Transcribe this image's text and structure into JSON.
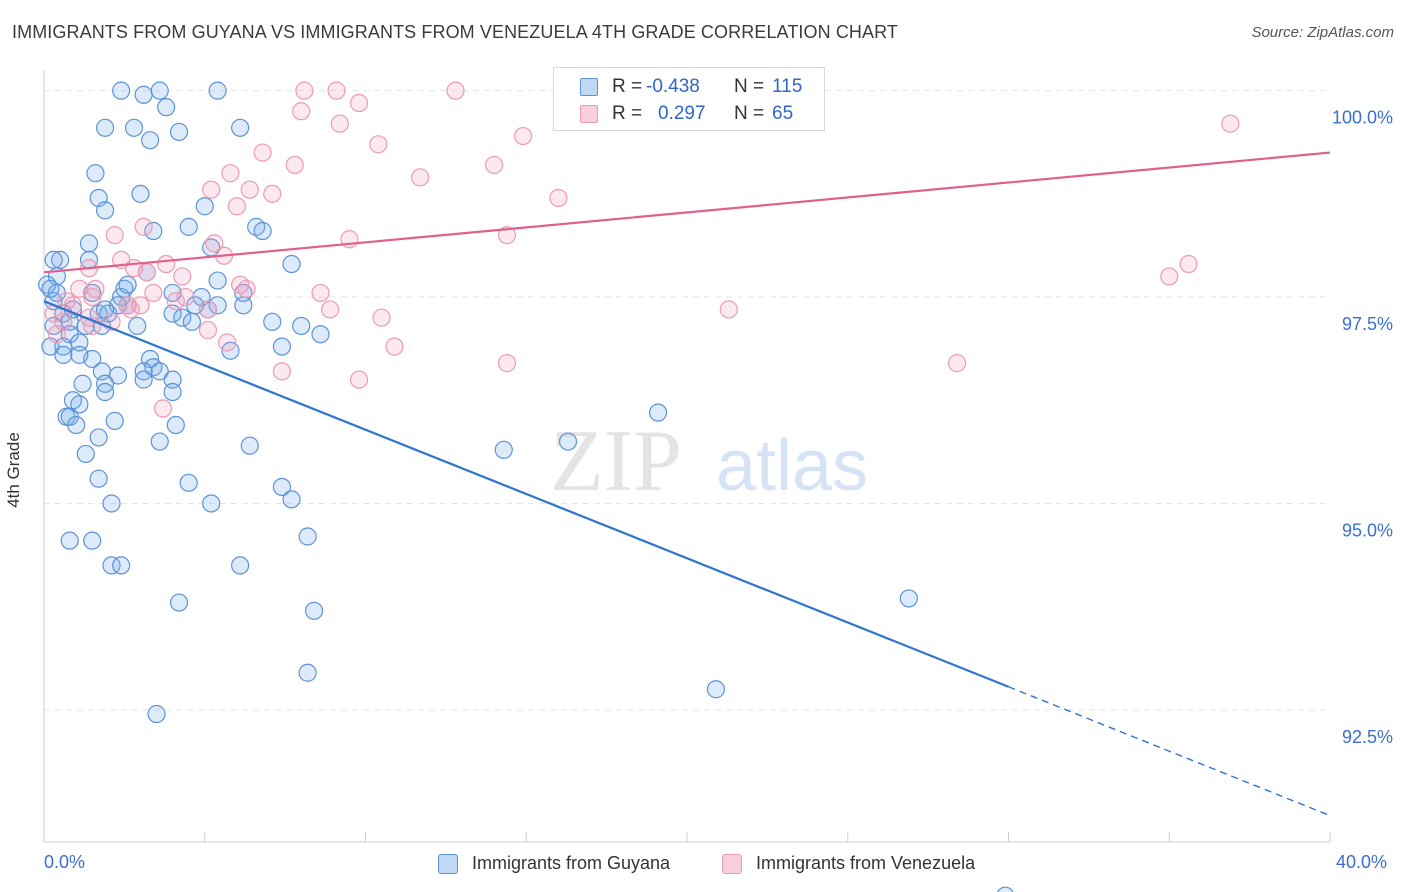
{
  "title": "IMMIGRANTS FROM GUYANA VS IMMIGRANTS FROM VENEZUELA 4TH GRADE CORRELATION CHART",
  "source": "Source: ZipAtlas.com",
  "watermark": {
    "part1": "ZIP",
    "part2": "atlas"
  },
  "legend": {
    "rows": [
      {
        "r_label": "R =",
        "r_value": "-0.438",
        "n_label": "N =",
        "n_value": "115"
      },
      {
        "r_label": "R =",
        "r_value": "0.297",
        "n_label": "N =",
        "n_value": "65"
      }
    ]
  },
  "colors": {
    "guyana_fill": "rgba(120,170,230,0.25)",
    "guyana_stroke": "#5b93d8",
    "guyana_line": "#2f74d0",
    "venezuela_fill": "rgba(240,150,180,0.22)",
    "venezuela_stroke": "#ec9ab5",
    "venezuela_line": "#e0608a",
    "tick_label": "#3b6fcf",
    "grid": "#e5e5e5"
  },
  "chart_data": {
    "type": "scatter",
    "title": "IMMIGRANTS FROM GUYANA VS IMMIGRANTS FROM VENEZUELA 4TH GRADE CORRELATION CHART",
    "xlabel": "",
    "ylabel": "4th Grade",
    "xlim": [
      0,
      40
    ],
    "ylim": [
      90.9,
      100.25
    ],
    "x_tick_labels": [
      "0.0%",
      "40.0%"
    ],
    "y_ticks": [
      92.5,
      95.0,
      97.5,
      100.0
    ],
    "y_tick_labels": [
      "92.5%",
      "95.0%",
      "97.5%",
      "100.0%"
    ],
    "grid": true,
    "legend_position": "top-center",
    "series": [
      {
        "name": "Immigrants from Guyana",
        "r": -0.438,
        "n": 115,
        "trend": {
          "x": [
            0,
            30
          ],
          "y": [
            97.45,
            92.78
          ],
          "dashed_to": [
            40,
            91.22
          ]
        },
        "points": [
          [
            2.4,
            100.0
          ],
          [
            3.6,
            100.0
          ],
          [
            5.4,
            100.0
          ],
          [
            3.1,
            99.95
          ],
          [
            3.8,
            99.8
          ],
          [
            1.9,
            99.55
          ],
          [
            2.8,
            99.55
          ],
          [
            4.2,
            99.5
          ],
          [
            6.1,
            99.55
          ],
          [
            3.3,
            99.4
          ],
          [
            1.6,
            99.0
          ],
          [
            3.0,
            98.75
          ],
          [
            1.7,
            98.7
          ],
          [
            5.0,
            98.6
          ],
          [
            1.9,
            98.55
          ],
          [
            4.5,
            98.35
          ],
          [
            6.6,
            98.35
          ],
          [
            3.4,
            98.3
          ],
          [
            6.8,
            98.3
          ],
          [
            1.4,
            98.15
          ],
          [
            5.2,
            98.1
          ],
          [
            0.5,
            97.95
          ],
          [
            0.3,
            97.95
          ],
          [
            1.4,
            97.95
          ],
          [
            7.7,
            97.9
          ],
          [
            3.2,
            97.8
          ],
          [
            0.4,
            97.75
          ],
          [
            5.4,
            97.7
          ],
          [
            0.1,
            97.65
          ],
          [
            2.5,
            97.6
          ],
          [
            1.5,
            97.55
          ],
          [
            6.2,
            97.55
          ],
          [
            4.0,
            97.55
          ],
          [
            2.4,
            97.5
          ],
          [
            4.9,
            97.5
          ],
          [
            0.3,
            97.45
          ],
          [
            4.7,
            97.4
          ],
          [
            5.4,
            97.4
          ],
          [
            2.3,
            97.4
          ],
          [
            2.6,
            97.4
          ],
          [
            0.6,
            97.3
          ],
          [
            1.7,
            97.3
          ],
          [
            2.0,
            97.3
          ],
          [
            4.0,
            97.3
          ],
          [
            4.3,
            97.25
          ],
          [
            0.8,
            97.2
          ],
          [
            4.6,
            97.2
          ],
          [
            1.3,
            97.15
          ],
          [
            2.9,
            97.15
          ],
          [
            0.3,
            97.15
          ],
          [
            1.8,
            97.15
          ],
          [
            8.0,
            97.15
          ],
          [
            8.6,
            97.05
          ],
          [
            0.8,
            97.05
          ],
          [
            1.1,
            96.95
          ],
          [
            0.2,
            96.9
          ],
          [
            0.6,
            96.9
          ],
          [
            7.4,
            96.9
          ],
          [
            5.8,
            96.85
          ],
          [
            1.5,
            96.75
          ],
          [
            0.6,
            96.8
          ],
          [
            3.3,
            96.75
          ],
          [
            3.4,
            96.65
          ],
          [
            3.1,
            96.6
          ],
          [
            1.8,
            96.6
          ],
          [
            3.6,
            96.6
          ],
          [
            2.3,
            96.55
          ],
          [
            3.1,
            96.5
          ],
          [
            4.0,
            96.5
          ],
          [
            1.2,
            96.45
          ],
          [
            1.9,
            96.45
          ],
          [
            1.9,
            96.35
          ],
          [
            4.0,
            96.35
          ],
          [
            0.9,
            96.25
          ],
          [
            1.1,
            96.2
          ],
          [
            19.1,
            96.1
          ],
          [
            0.7,
            96.05
          ],
          [
            0.8,
            96.05
          ],
          [
            2.2,
            96.0
          ],
          [
            4.1,
            95.95
          ],
          [
            1.0,
            95.95
          ],
          [
            1.7,
            95.8
          ],
          [
            3.6,
            95.75
          ],
          [
            6.4,
            95.7
          ],
          [
            14.3,
            95.65
          ],
          [
            16.3,
            95.75
          ],
          [
            1.3,
            95.6
          ],
          [
            1.7,
            95.3
          ],
          [
            4.5,
            95.25
          ],
          [
            7.4,
            95.2
          ],
          [
            7.7,
            95.05
          ],
          [
            2.1,
            95.0
          ],
          [
            5.2,
            95.0
          ],
          [
            8.2,
            94.6
          ],
          [
            0.8,
            94.55
          ],
          [
            1.5,
            94.55
          ],
          [
            2.1,
            94.25
          ],
          [
            2.4,
            94.25
          ],
          [
            6.1,
            94.25
          ],
          [
            4.2,
            93.8
          ],
          [
            26.9,
            93.85
          ],
          [
            8.4,
            93.7
          ],
          [
            8.2,
            92.95
          ],
          [
            20.9,
            92.75
          ],
          [
            3.5,
            92.45
          ],
          [
            29.9,
            90.25
          ],
          [
            0.4,
            97.55
          ],
          [
            1.1,
            96.8
          ],
          [
            2.6,
            97.65
          ],
          [
            0.9,
            97.35
          ],
          [
            1.9,
            97.35
          ],
          [
            5.1,
            97.35
          ],
          [
            6.2,
            97.4
          ],
          [
            7.1,
            97.2
          ],
          [
            0.2,
            97.6
          ]
        ]
      },
      {
        "name": "Immigrants from Venezuela",
        "r": 0.297,
        "n": 65,
        "trend": {
          "x": [
            0,
            40
          ],
          "y": [
            97.8,
            99.25
          ]
        },
        "points": [
          [
            8.1,
            100.0
          ],
          [
            9.1,
            100.0
          ],
          [
            12.8,
            100.0
          ],
          [
            8.0,
            99.75
          ],
          [
            9.8,
            99.85
          ],
          [
            9.2,
            99.6
          ],
          [
            36.9,
            99.6
          ],
          [
            14.9,
            99.45
          ],
          [
            10.4,
            99.35
          ],
          [
            6.8,
            99.25
          ],
          [
            7.8,
            99.1
          ],
          [
            14.0,
            99.1
          ],
          [
            5.8,
            99.0
          ],
          [
            11.7,
            98.95
          ],
          [
            5.2,
            98.8
          ],
          [
            6.4,
            98.8
          ],
          [
            7.1,
            98.75
          ],
          [
            16.0,
            98.7
          ],
          [
            6.0,
            98.6
          ],
          [
            3.1,
            98.35
          ],
          [
            2.2,
            98.25
          ],
          [
            14.4,
            98.25
          ],
          [
            9.5,
            98.2
          ],
          [
            5.3,
            98.15
          ],
          [
            5.6,
            98.0
          ],
          [
            2.4,
            97.95
          ],
          [
            1.4,
            97.85
          ],
          [
            3.8,
            97.9
          ],
          [
            2.8,
            97.85
          ],
          [
            3.2,
            97.8
          ],
          [
            4.3,
            97.75
          ],
          [
            35.0,
            97.75
          ],
          [
            35.6,
            97.9
          ],
          [
            1.6,
            97.6
          ],
          [
            6.3,
            97.6
          ],
          [
            3.4,
            97.55
          ],
          [
            8.6,
            97.55
          ],
          [
            4.4,
            97.5
          ],
          [
            1.5,
            97.5
          ],
          [
            0.7,
            97.45
          ],
          [
            2.6,
            97.4
          ],
          [
            3.0,
            97.4
          ],
          [
            5.1,
            97.35
          ],
          [
            21.3,
            97.35
          ],
          [
            8.9,
            97.35
          ],
          [
            0.3,
            97.3
          ],
          [
            1.4,
            97.25
          ],
          [
            10.5,
            97.25
          ],
          [
            0.6,
            97.2
          ],
          [
            2.1,
            97.2
          ],
          [
            1.5,
            97.15
          ],
          [
            5.1,
            97.1
          ],
          [
            5.7,
            96.95
          ],
          [
            10.9,
            96.9
          ],
          [
            0.4,
            97.05
          ],
          [
            28.4,
            96.7
          ],
          [
            14.4,
            96.7
          ],
          [
            7.4,
            96.6
          ],
          [
            9.8,
            96.5
          ],
          [
            3.7,
            96.15
          ],
          [
            0.9,
            97.4
          ],
          [
            2.7,
            97.35
          ],
          [
            4.1,
            97.45
          ],
          [
            6.1,
            97.65
          ],
          [
            1.1,
            97.6
          ]
        ]
      }
    ]
  },
  "bottom_legend": {
    "guyana_label": "Immigrants from Guyana",
    "venezuela_label": "Immigrants from Venezuela"
  }
}
